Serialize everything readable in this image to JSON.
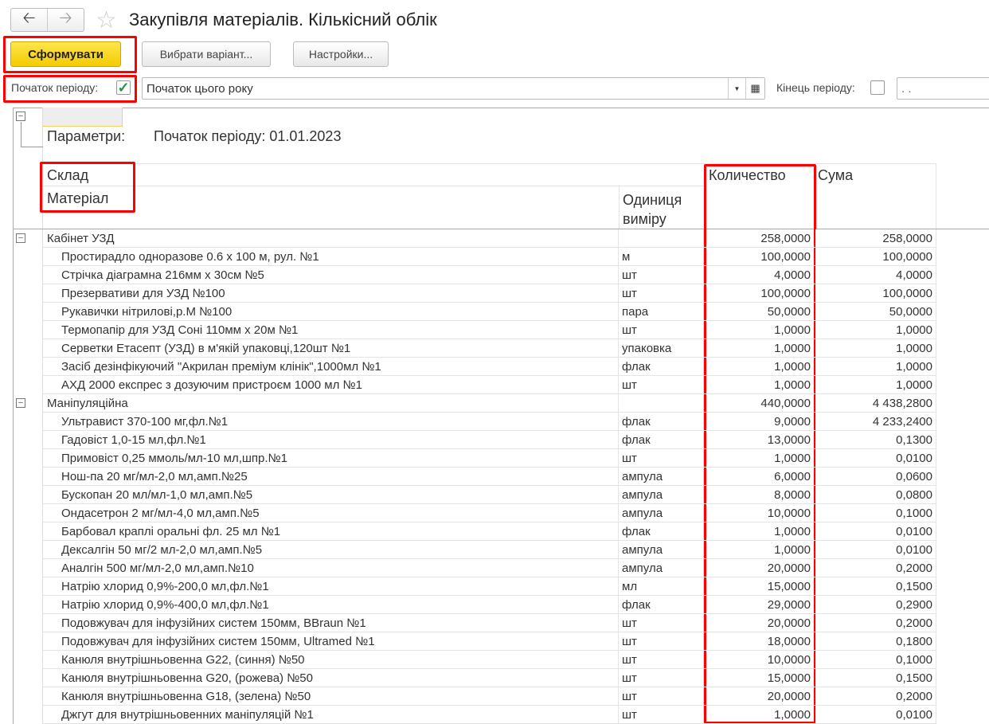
{
  "window": {
    "title": "Закупівля матеріалів. Кількісний облік",
    "back_icon": "arrow-left",
    "forward_icon": "arrow-right",
    "favorite_icon": "star"
  },
  "toolbar": {
    "generate": "Сформувати",
    "choose_variant": "Вибрати варіант...",
    "settings": "Настройки..."
  },
  "period": {
    "start_label": "Початок періоду:",
    "start_checked": true,
    "start_value": "Початок цього року",
    "end_label": "Кінець періоду:",
    "end_checked": false,
    "end_value": ". ."
  },
  "report": {
    "params_label": "Параметри:",
    "params_value": "Початок періоду: 01.01.2023",
    "headers": {
      "warehouse": "Склад",
      "material": "Матеріал",
      "unit": "Одиниця виміру",
      "quantity": "Количество",
      "sum": "Сума"
    },
    "groups": [
      {
        "name": "Кабінет УЗД",
        "quantity": "258,0000",
        "sum": "258,0000",
        "items": [
          [
            "Простирадло одноразове 0.6 х 100 м, рул. №1",
            "м",
            "100,0000",
            "100,0000"
          ],
          [
            "Стрічка діаграмна 216мм х 30см №5",
            "шт",
            "4,0000",
            "4,0000"
          ],
          [
            "Презервативи для УЗД №100",
            "шт",
            "100,0000",
            "100,0000"
          ],
          [
            "Рукавички нітрилові,р.М №100",
            "пара",
            "50,0000",
            "50,0000"
          ],
          [
            "Термопапір для УЗД Соні 110мм х 20м №1",
            "шт",
            "1,0000",
            "1,0000"
          ],
          [
            "Серветки Етасепт (УЗД) в м'якій упаковці,120шт №1",
            "упаковка",
            "1,0000",
            "1,0000"
          ],
          [
            "Засіб дезінфікуючий \"Акрилан преміум клінік\",1000мл №1",
            "флак",
            "1,0000",
            "1,0000"
          ],
          [
            "АХД 2000 експрес з дозуючим пристроєм 1000 мл №1",
            "шт",
            "1,0000",
            "1,0000"
          ]
        ]
      },
      {
        "name": "Маніпуляційна",
        "quantity": "440,0000",
        "sum": "4 438,2800",
        "items": [
          [
            "Ультравист 370-100 мг,фл.№1",
            "флак",
            "9,0000",
            "4 233,2400"
          ],
          [
            "Гадовіст 1,0-15 мл,фл.№1",
            "флак",
            "13,0000",
            "0,1300"
          ],
          [
            "Примовіст 0,25 ммоль/мл-10 мл,шпр.№1",
            "шт",
            "1,0000",
            "0,0100"
          ],
          [
            "Нош-па 20 мг/мл-2,0 мл,амп.№25",
            "ампула",
            "6,0000",
            "0,0600"
          ],
          [
            "Бускопан 20 мл/мл-1,0 мл,амп.№5",
            "ампула",
            "8,0000",
            "0,0800"
          ],
          [
            "Ондасетрон 2 мг/мл-4,0 мл,амп.№5",
            "ампула",
            "10,0000",
            "0,1000"
          ],
          [
            "Барбовал краплі оральні фл. 25 мл №1",
            "флак",
            "1,0000",
            "0,0100"
          ],
          [
            "Дексалгін 50 мг/2 мл-2,0 мл,амп.№5",
            "ампула",
            "1,0000",
            "0,0100"
          ],
          [
            "Аналгін 500 мг/мл-2,0 мл,амп.№10",
            "ампула",
            "20,0000",
            "0,2000"
          ],
          [
            "Натрію хлорид 0,9%-200,0 мл,фл.№1",
            "мл",
            "15,0000",
            "0,1500"
          ],
          [
            "Натрію хлорид 0,9%-400,0 мл,фл.№1",
            "флак",
            "29,0000",
            "0,2900"
          ],
          [
            "Подовжувач для інфузійних систем 150мм, BBraun №1",
            "шт",
            "20,0000",
            "0,2000"
          ],
          [
            "Подовжувач для інфузійних систем 150мм, Ultramed №1",
            "шт",
            "18,0000",
            "0,1800"
          ],
          [
            "Канюля внутрішньовенна G22, (синня) №50",
            "шт",
            "10,0000",
            "0,1000"
          ],
          [
            "Канюля внутрішньовенна G20, (рожева) №50",
            "шт",
            "15,0000",
            "0,1500"
          ],
          [
            "Канюля внутрішньовенна G18, (зелена) №50",
            "шт",
            "20,0000",
            "0,2000"
          ],
          [
            "Джгут для внутрішньовенних маніпуляцій №1",
            "шт",
            "1,0000",
            "0,0100"
          ]
        ]
      }
    ]
  },
  "colors": {
    "highlight": "#ff0000",
    "primary_button": "#f5d000",
    "check": "#1a9a3a"
  }
}
